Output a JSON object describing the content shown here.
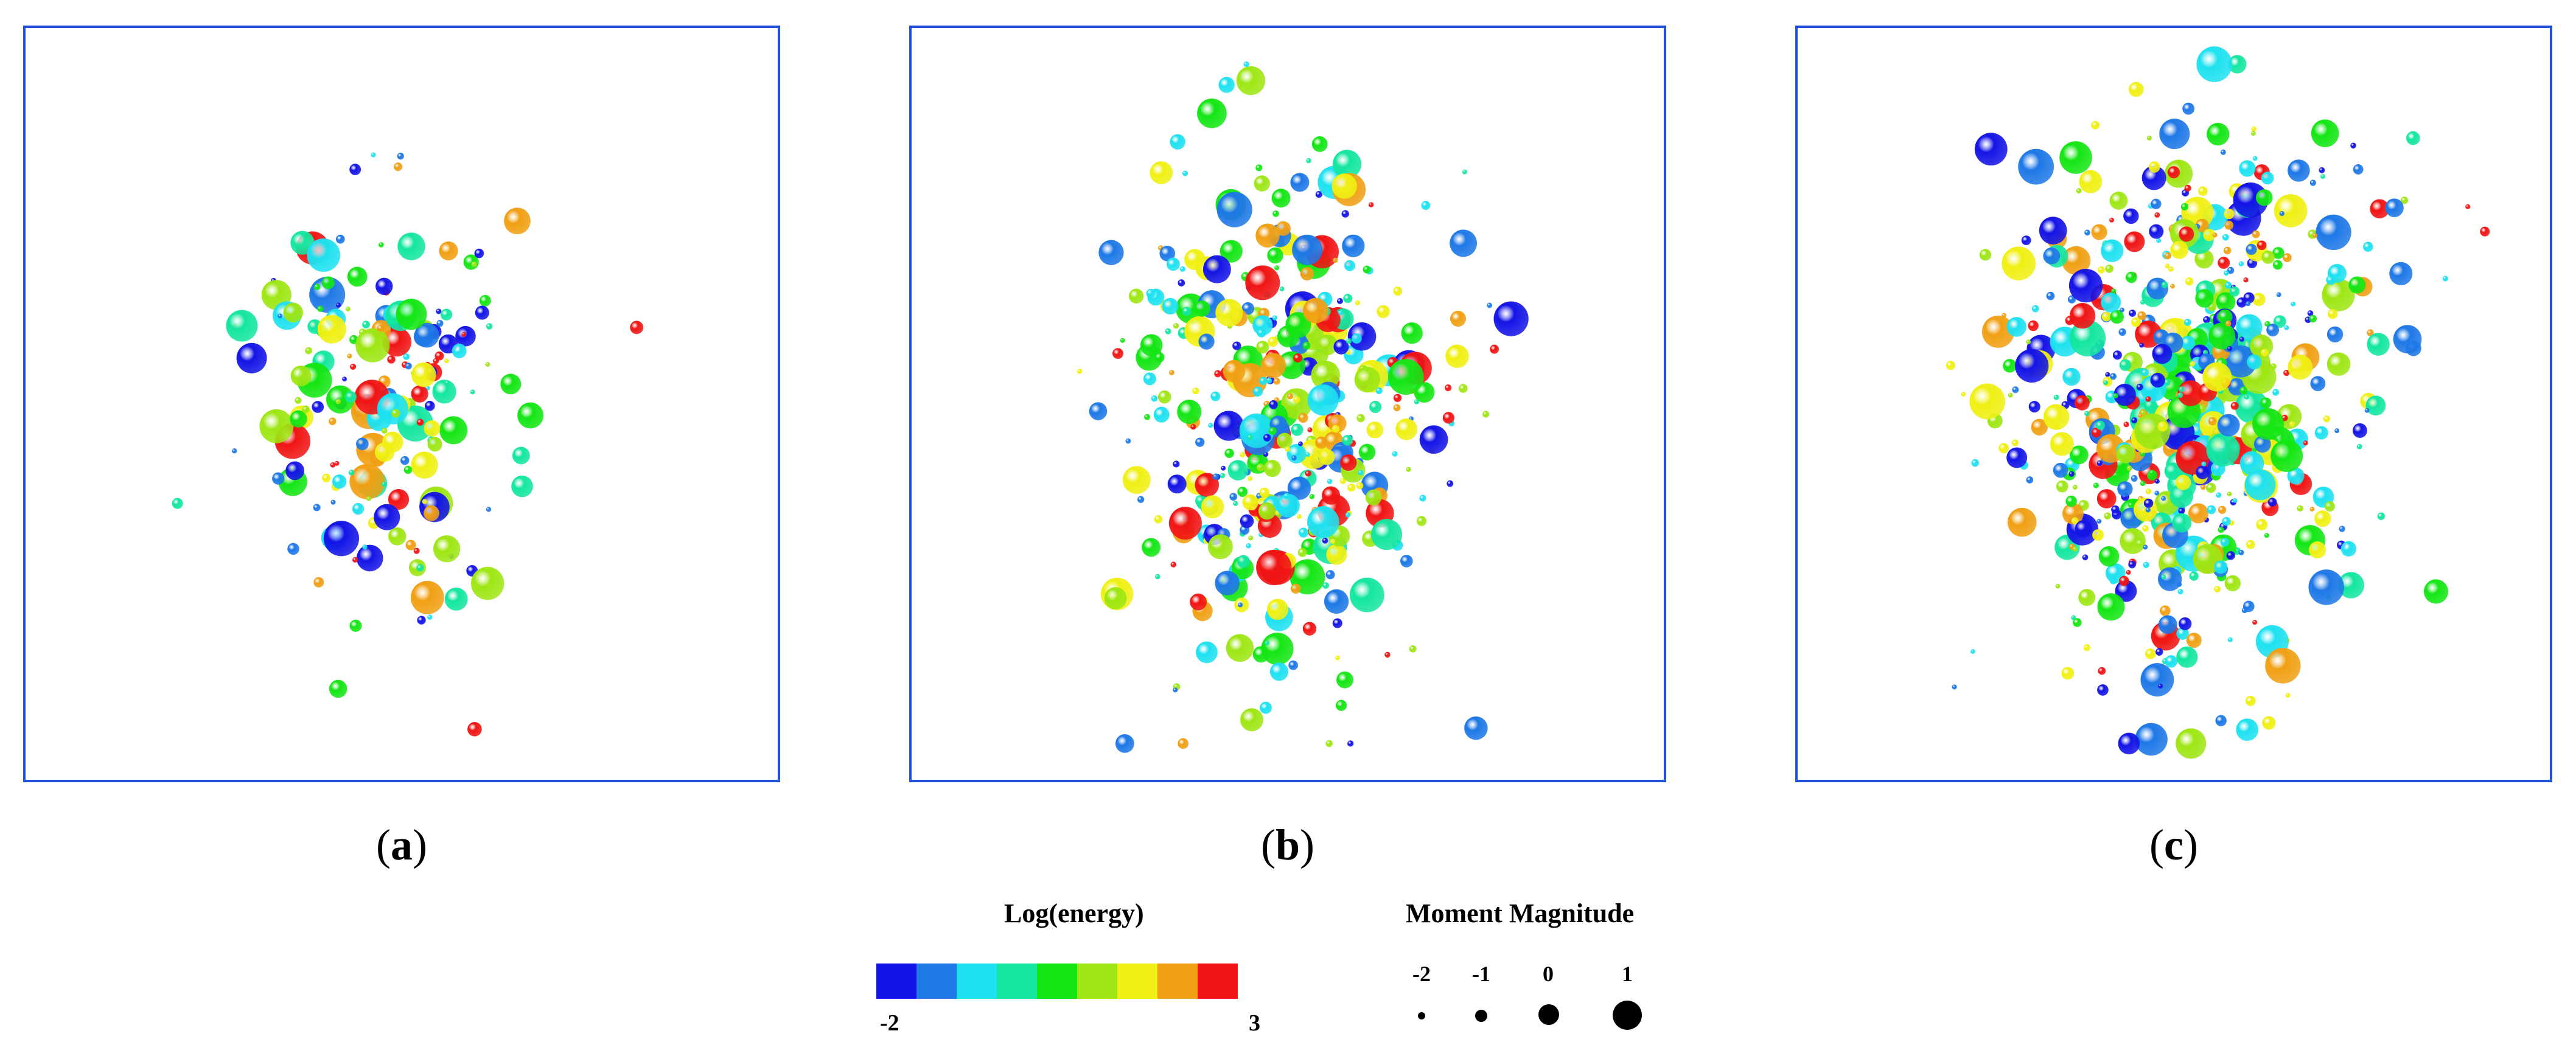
{
  "panels": [
    {
      "id": "a",
      "caption": "a"
    },
    {
      "id": "b",
      "caption": "b"
    },
    {
      "id": "c",
      "caption": "c"
    }
  ],
  "legend": {
    "energy_title": "Log(energy)",
    "energy_min": "-2",
    "energy_max": "3",
    "colors": [
      "#1414e6",
      "#1e78e6",
      "#1ee1f0",
      "#14e6a0",
      "#14e614",
      "#9ee614",
      "#f0f014",
      "#f0a014",
      "#f01414"
    ],
    "moment_title": "Moment Magnitude",
    "moment_levels": [
      "-2",
      "-1",
      "0",
      "1"
    ]
  }
}
